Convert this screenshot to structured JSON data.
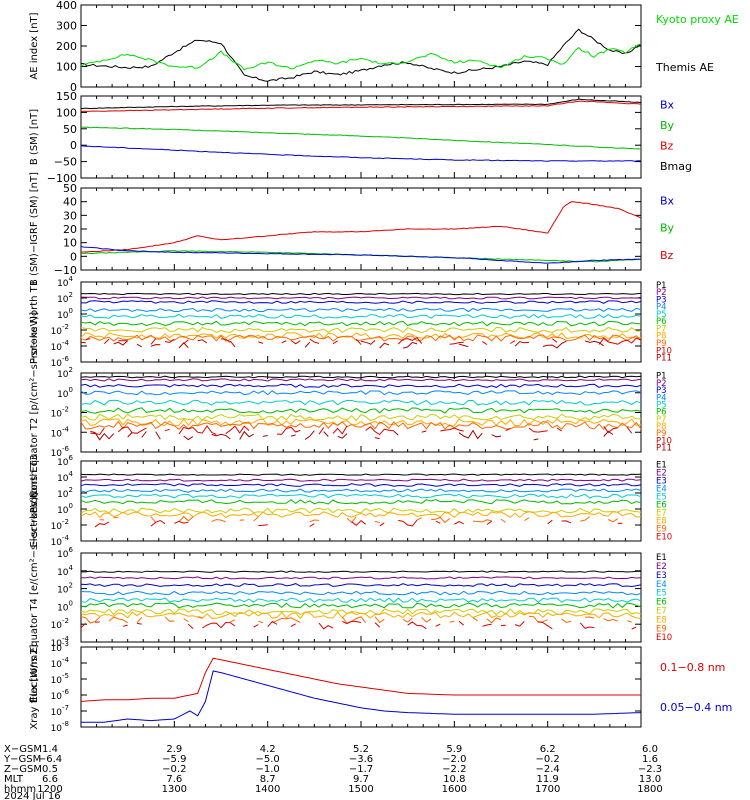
{
  "chart_data": [
    {
      "type": "line",
      "ylabel": "AE index [nT]",
      "ylim": [
        0,
        400
      ],
      "yticks": [
        "0",
        "100",
        "200",
        "300",
        "400"
      ],
      "legend": [
        {
          "label": "Kyoto proxy AE",
          "color": "#00dd00"
        },
        {
          "label": "Themis AE",
          "color": "#000000"
        }
      ],
      "series": [
        {
          "name": "Themis AE",
          "color": "#000000",
          "x": [
            "12:00",
            "12:30",
            "12:45",
            "13:00",
            "13:15",
            "13:30",
            "13:45",
            "14:00",
            "14:15",
            "14:30",
            "14:45",
            "15:00",
            "15:15",
            "15:30",
            "15:45",
            "16:00",
            "16:15",
            "16:30",
            "16:45",
            "17:00",
            "17:10",
            "17:20",
            "17:30",
            "17:40",
            "17:50",
            "18:00"
          ],
          "values": [
            110,
            95,
            100,
            170,
            230,
            215,
            55,
            30,
            45,
            75,
            60,
            80,
            110,
            120,
            90,
            70,
            85,
            100,
            125,
            110,
            200,
            280,
            230,
            180,
            160,
            210
          ]
        },
        {
          "name": "Kyoto proxy AE",
          "color": "#00dd00",
          "x": [
            "12:00",
            "12:30",
            "12:45",
            "13:00",
            "13:15",
            "13:30",
            "13:45",
            "14:00",
            "14:15",
            "14:30",
            "14:45",
            "15:00",
            "15:15",
            "15:30",
            "15:45",
            "16:00",
            "16:15",
            "16:30",
            "16:45",
            "17:00",
            "17:10",
            "17:20",
            "17:30",
            "17:40",
            "17:50",
            "18:00"
          ],
          "values": [
            105,
            160,
            130,
            100,
            95,
            170,
            85,
            120,
            90,
            130,
            115,
            140,
            110,
            125,
            160,
            120,
            130,
            95,
            150,
            140,
            110,
            190,
            150,
            185,
            170,
            210
          ]
        }
      ]
    },
    {
      "type": "line",
      "ylabel": "B (SM) [nT]",
      "ylim": [
        -100,
        150
      ],
      "yticks": [
        "150",
        "100",
        "50",
        "0",
        "−50",
        "−100"
      ],
      "legend": [
        {
          "label": "Bx",
          "color": "#0000cc"
        },
        {
          "label": "By",
          "color": "#00bb00"
        },
        {
          "label": "Bz",
          "color": "#dd0000"
        },
        {
          "label": "Bmag",
          "color": "#000000"
        }
      ],
      "series": [
        {
          "name": "Bmag",
          "color": "#000000",
          "x": [
            "12:00",
            "13:00",
            "14:00",
            "15:00",
            "16:00",
            "17:00",
            "17:20",
            "18:00"
          ],
          "values": [
            112,
            118,
            122,
            123,
            124,
            125,
            140,
            130
          ]
        },
        {
          "name": "Bz",
          "color": "#dd0000",
          "x": [
            "12:00",
            "13:00",
            "14:00",
            "15:00",
            "16:00",
            "17:00",
            "17:20",
            "18:00"
          ],
          "values": [
            103,
            108,
            113,
            116,
            118,
            120,
            135,
            125
          ]
        },
        {
          "name": "By",
          "color": "#00bb00",
          "x": [
            "12:00",
            "13:00",
            "14:00",
            "15:00",
            "16:00",
            "17:00",
            "18:00"
          ],
          "values": [
            55,
            48,
            38,
            28,
            15,
            2,
            -12
          ]
        },
        {
          "name": "Bx",
          "color": "#0000cc",
          "x": [
            "12:00",
            "13:00",
            "14:00",
            "15:00",
            "16:00",
            "17:00",
            "18:00"
          ],
          "values": [
            -2,
            -15,
            -28,
            -38,
            -45,
            -48,
            -48
          ]
        }
      ]
    },
    {
      "type": "line",
      "ylabel": "B (SM)−IGRF (SM) [nT]",
      "ylim": [
        -10,
        50
      ],
      "yticks": [
        "50",
        "40",
        "30",
        "20",
        "10",
        "0",
        "−10"
      ],
      "legend": [
        {
          "label": "Bx",
          "color": "#0000cc"
        },
        {
          "label": "By",
          "color": "#00bb00"
        },
        {
          "label": "Bz",
          "color": "#dd0000"
        }
      ],
      "series": [
        {
          "name": "Bz",
          "color": "#dd0000",
          "x": [
            "12:00",
            "12:30",
            "13:00",
            "13:15",
            "13:30",
            "14:00",
            "14:30",
            "15:00",
            "15:30",
            "16:00",
            "16:30",
            "17:00",
            "17:10",
            "17:15",
            "17:30",
            "17:45",
            "18:00"
          ],
          "values": [
            3,
            5,
            10,
            15,
            12,
            15,
            18,
            18,
            20,
            20,
            22,
            17,
            36,
            40,
            38,
            35,
            28
          ]
        },
        {
          "name": "By",
          "color": "#00bb00",
          "x": [
            "12:00",
            "13:00",
            "14:00",
            "15:00",
            "16:00",
            "17:00",
            "17:30",
            "18:00"
          ],
          "values": [
            2,
            4,
            3,
            1,
            -1,
            -3,
            -4,
            -2
          ]
        },
        {
          "name": "Bx",
          "color": "#0000cc",
          "x": [
            "12:00",
            "12:30",
            "13:00",
            "14:00",
            "15:00",
            "16:00",
            "17:00",
            "17:30",
            "18:00"
          ],
          "values": [
            7,
            4,
            3,
            2,
            1,
            -1,
            -5,
            -3,
            -2
          ]
        }
      ]
    },
    {
      "type": "line",
      "ylabel": "Protons North T1",
      "yscale": "log",
      "ylim": [
        -6,
        4
      ],
      "yticks": [
        "10^4",
        "10^2",
        "10^0",
        "10^-2",
        "10^-4",
        "10^-6"
      ],
      "legend": [
        {
          "label": "P1",
          "color": "#000000"
        },
        {
          "label": "P2",
          "color": "#800080"
        },
        {
          "label": "P3",
          "color": "#0000cc"
        },
        {
          "label": "P4",
          "color": "#0088ff"
        },
        {
          "label": "P5",
          "color": "#00cccc"
        },
        {
          "label": "P6",
          "color": "#00bb00"
        },
        {
          "label": "P7",
          "color": "#cccc00"
        },
        {
          "label": "P8",
          "color": "#ffaa00"
        },
        {
          "label": "P9",
          "color": "#ff6600"
        },
        {
          "label": "P10",
          "color": "#dd0000"
        },
        {
          "label": "P11",
          "color": "#aa0000"
        }
      ],
      "levels_log10": [
        2.5,
        2.0,
        1.5,
        0.5,
        -0.3,
        -1.2,
        -2.0,
        -2.7,
        -3.0,
        -3.4,
        -3.8
      ]
    },
    {
      "type": "line",
      "ylabel": "Protons Equator T2 [p/(cm²−s−sr−keV)]",
      "yscale": "log",
      "ylim": [
        -6,
        2
      ],
      "yticks": [
        "10^2",
        "10^0",
        "10^-2",
        "10^-4",
        "10^-6"
      ],
      "legend": [
        {
          "label": "P1",
          "color": "#000000"
        },
        {
          "label": "P2",
          "color": "#800080"
        },
        {
          "label": "P3",
          "color": "#0000cc"
        },
        {
          "label": "P4",
          "color": "#0088ff"
        },
        {
          "label": "P5",
          "color": "#00cccc"
        },
        {
          "label": "P6",
          "color": "#00bb00"
        },
        {
          "label": "P7",
          "color": "#cccc00"
        },
        {
          "label": "P8",
          "color": "#ffaa00"
        },
        {
          "label": "P9",
          "color": "#ff6600"
        },
        {
          "label": "P10",
          "color": "#dd0000"
        },
        {
          "label": "P11",
          "color": "#aa0000"
        }
      ],
      "levels_log10": [
        1.6,
        1.3,
        0.7,
        0.0,
        -1.0,
        -1.8,
        -2.5,
        -3.0,
        -3.3,
        -3.8,
        -4.3
      ]
    },
    {
      "type": "line",
      "ylabel": "Electrons North T3",
      "yscale": "log",
      "ylim": [
        -4,
        6
      ],
      "yticks": [
        "10^6",
        "10^4",
        "10^2",
        "10^0",
        "10^-2",
        "10^-4"
      ],
      "legend": [
        {
          "label": "E1",
          "color": "#000000"
        },
        {
          "label": "E2",
          "color": "#800080"
        },
        {
          "label": "E3",
          "color": "#0000cc"
        },
        {
          "label": "E4",
          "color": "#0088ff"
        },
        {
          "label": "E5",
          "color": "#00cccc"
        },
        {
          "label": "E6",
          "color": "#00bb00"
        },
        {
          "label": "E7",
          "color": "#cccc00"
        },
        {
          "label": "E8",
          "color": "#ffaa00"
        },
        {
          "label": "E9",
          "color": "#ff6600"
        },
        {
          "label": "E10",
          "color": "#dd0000"
        }
      ],
      "levels_log10": [
        4.3,
        3.6,
        3.0,
        2.3,
        1.6,
        0.9,
        -0.2,
        -0.7,
        -1.3,
        -1.8
      ]
    },
    {
      "type": "line",
      "ylabel": "Electrons Equator T4 [e/(cm²−s−sr−keV)]",
      "yscale": "log",
      "ylim": [
        -4,
        6
      ],
      "yticks": [
        "10^6",
        "10^4",
        "10^2",
        "10^0",
        "10^-2",
        "10^-4"
      ],
      "legend": [
        {
          "label": "E1",
          "color": "#000000"
        },
        {
          "label": "E2",
          "color": "#800080"
        },
        {
          "label": "E3",
          "color": "#0000cc"
        },
        {
          "label": "E4",
          "color": "#0088ff"
        },
        {
          "label": "E5",
          "color": "#00cccc"
        },
        {
          "label": "E6",
          "color": "#00bb00"
        },
        {
          "label": "E7",
          "color": "#cccc00"
        },
        {
          "label": "E8",
          "color": "#ffaa00"
        },
        {
          "label": "E9",
          "color": "#ff6600"
        },
        {
          "label": "E10",
          "color": "#dd0000"
        }
      ],
      "levels_log10": [
        3.9,
        3.2,
        2.4,
        1.5,
        0.7,
        0.1,
        -0.6,
        -1.0,
        -1.5,
        -2.1
      ]
    },
    {
      "type": "line",
      "ylabel": "Xray flux [W/m2]",
      "yscale": "log",
      "ylim": [
        -8,
        -3
      ],
      "yticks": [
        "10^-3",
        "10^-4",
        "10^-5",
        "10^-6",
        "10^-7",
        "10^-8"
      ],
      "legend": [
        {
          "label": "0.1−0.8 nm",
          "color": "#dd0000"
        },
        {
          "label": "0.05−0.4 nm",
          "color": "#0000cc"
        }
      ],
      "series": [
        {
          "name": "0.1−0.8 nm",
          "color": "#dd0000",
          "x": [
            "12:00",
            "12:15",
            "12:30",
            "12:45",
            "13:00",
            "13:15",
            "13:20",
            "13:25",
            "13:30",
            "13:45",
            "14:00",
            "14:15",
            "14:30",
            "14:45",
            "15:00",
            "15:15",
            "15:30",
            "16:00",
            "16:30",
            "17:00",
            "17:30",
            "18:00"
          ],
          "values": [
            -6.4,
            -6.3,
            -6.3,
            -6.2,
            -6.2,
            -5.9,
            -4.6,
            -3.7,
            -3.8,
            -4.1,
            -4.4,
            -4.7,
            -5.0,
            -5.3,
            -5.5,
            -5.7,
            -5.9,
            -6.0,
            -6.0,
            -6.0,
            -6.0,
            -6.0
          ]
        },
        {
          "name": "0.05−0.4 nm",
          "color": "#0000cc",
          "x": [
            "12:00",
            "12:15",
            "12:30",
            "12:45",
            "13:00",
            "13:10",
            "13:15",
            "13:20",
            "13:25",
            "13:30",
            "13:45",
            "14:00",
            "14:15",
            "14:30",
            "14:45",
            "15:00",
            "15:15",
            "15:30",
            "16:00",
            "16:30",
            "17:00",
            "17:30",
            "18:00"
          ],
          "values": [
            -7.7,
            -7.7,
            -7.5,
            -7.6,
            -7.5,
            -7.0,
            -7.3,
            -6.4,
            -4.5,
            -4.6,
            -5.0,
            -5.4,
            -5.8,
            -6.2,
            -6.5,
            -6.8,
            -7.0,
            -7.1,
            -7.2,
            -7.2,
            -7.2,
            -7.2,
            -7.1
          ]
        }
      ]
    }
  ],
  "time_axis": {
    "ticks_hhmm": [
      "1200",
      "1300",
      "1400",
      "1500",
      "1600",
      "1700",
      "1800"
    ],
    "rows": [
      {
        "label": "X−GSM",
        "values": [
          "1.4",
          "2.9",
          "4.2",
          "5.2",
          "5.9",
          "6.2",
          "6.0"
        ]
      },
      {
        "label": "Y−GSM",
        "values": [
          "−6.4",
          "−5.9",
          "−5.0",
          "−3.6",
          "−2.0",
          "−0.2",
          "1.6"
        ]
      },
      {
        "label": "Z−GSM",
        "values": [
          "0.5",
          "−0.2",
          "−1.0",
          "−1.7",
          "−2.2",
          "−2.4",
          "−2.3"
        ]
      },
      {
        "label": "MLT",
        "values": [
          "6.6",
          "7.6",
          "8.7",
          "9.7",
          "10.8",
          "11.9",
          "13.0"
        ]
      },
      {
        "label": "hhmm",
        "values": [
          "1200",
          "1300",
          "1400",
          "1500",
          "1600",
          "1700",
          "1800"
        ]
      }
    ],
    "date": "2024 Jul 16"
  }
}
